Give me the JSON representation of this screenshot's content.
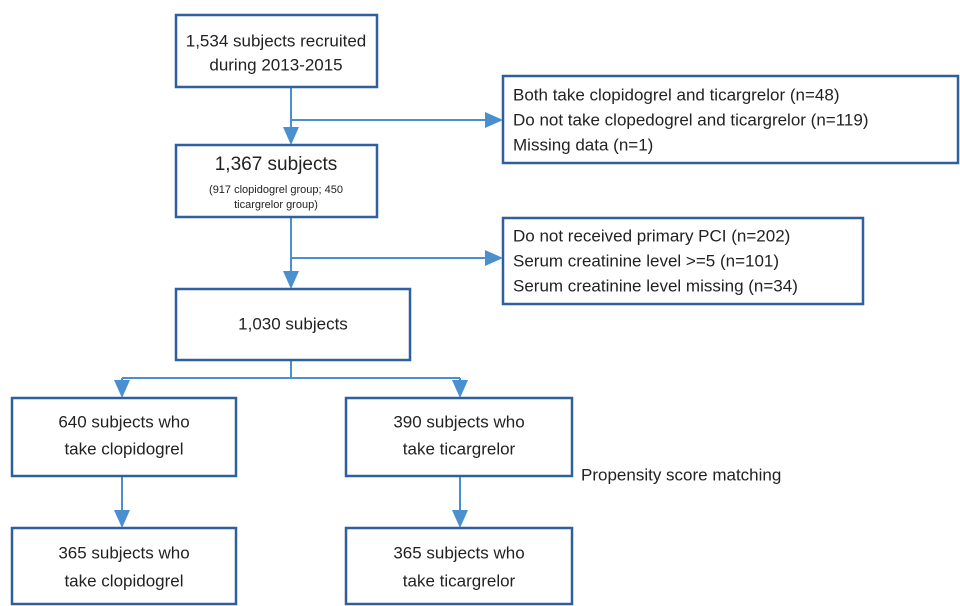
{
  "nodes": [
    {
      "lines": [
        "1,534 subjects recruited",
        "during 2013-2015"
      ]
    },
    {
      "lines": [
        "Both take clopidogrel and ticargrelor (n=48)",
        "Do not take clopedogrel and ticargrelor (n=119)",
        "Missing data (n=1)"
      ]
    },
    {
      "lines": [
        "1,367 subjects",
        "(917 clopidogrel group; 450",
        "ticargrelor group)"
      ]
    },
    {
      "lines": [
        "Do not received primary PCI (n=202)",
        "Serum creatinine level >=5 (n=101)",
        "Serum creatinine level missing (n=34)"
      ]
    },
    {
      "lines": [
        "1,030 subjects"
      ]
    },
    {
      "lines": [
        "640 subjects who",
        "take clopidogrel"
      ]
    },
    {
      "lines": [
        "390 subjects who",
        "take ticargrelor"
      ]
    },
    {
      "lines": [
        "365 subjects who",
        "take clopidogrel"
      ]
    },
    {
      "lines": [
        "365 subjects who",
        "take ticargrelor"
      ]
    }
  ],
  "annotation": "Propensity score matching"
}
